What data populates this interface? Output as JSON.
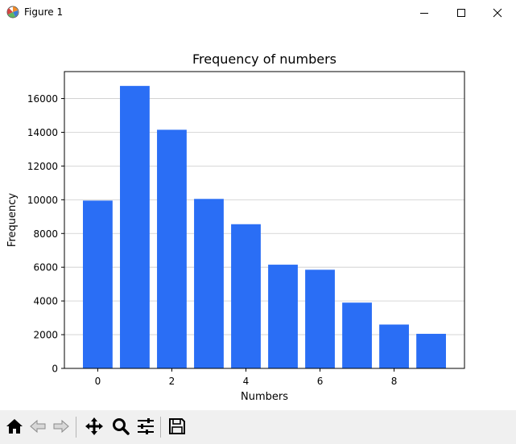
{
  "window": {
    "title": "Figure 1"
  },
  "toolbar": {
    "buttons": [
      {
        "name": "home-button",
        "icon": "home-icon"
      },
      {
        "name": "back-button",
        "icon": "back-arrow-icon"
      },
      {
        "name": "forward-button",
        "icon": "forward-arrow-icon"
      },
      {
        "name": "pan-button",
        "icon": "move-icon"
      },
      {
        "name": "zoom-button",
        "icon": "magnifier-icon"
      },
      {
        "name": "configure-subplots-button",
        "icon": "sliders-icon"
      },
      {
        "name": "save-button",
        "icon": "floppy-disk-icon"
      }
    ]
  },
  "colors": {
    "bar": "#2a6ef5",
    "grid": "#cccccc",
    "axes": "#000000"
  },
  "chart_data": {
    "type": "bar",
    "title": "Frequency of numbers",
    "xlabel": "Numbers",
    "ylabel": "Frequency",
    "categories": [
      0,
      1,
      2,
      3,
      4,
      5,
      6,
      7,
      8,
      9
    ],
    "values": [
      9950,
      16750,
      14150,
      10050,
      8550,
      6150,
      5850,
      3900,
      2600,
      2050
    ],
    "xlim": [
      -0.9,
      9.9
    ],
    "ylim": [
      0,
      17600
    ],
    "xticks": [
      0,
      2,
      4,
      6,
      8
    ],
    "yticks": [
      0,
      2000,
      4000,
      6000,
      8000,
      10000,
      12000,
      14000,
      16000
    ],
    "grid": "y-axis horizontal lines"
  }
}
